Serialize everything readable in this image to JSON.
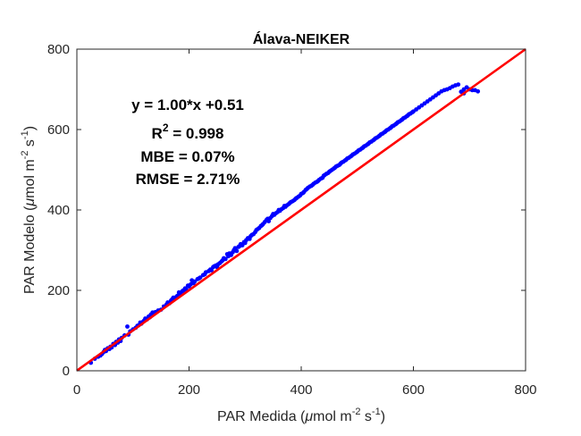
{
  "colors": {
    "points": "#0000ff",
    "fit_line": "#ff0000",
    "axes": "#262626",
    "background": "#ffffff"
  },
  "chart_data": {
    "type": "scatter",
    "title": "Álava-NEIKER",
    "xlabel": {
      "pre": "PAR Medida (",
      "mu": "μ",
      "mid": "mol m",
      "exp1": "-2",
      "mid2": " s",
      "exp2": "-1",
      "post": ")"
    },
    "ylabel": {
      "pre": "PAR Modelo (",
      "mu": "μ",
      "mid": "mol m",
      "exp1": "-2",
      "mid2": " s",
      "exp2": "-1",
      "post": ")"
    },
    "xlim": [
      0,
      800
    ],
    "ylim": [
      0,
      800
    ],
    "xticks": [
      "0",
      "200",
      "400",
      "600",
      "800"
    ],
    "yticks": [
      "0",
      "200",
      "400",
      "600",
      "800"
    ],
    "grid": false,
    "annotations": {
      "equation": "y = 1.00*x +0.51",
      "r2_base": "R",
      "r2_exp": "2",
      "r2_value": " = 0.998",
      "mbe": "MBE = 0.07%",
      "rmse": "RMSE = 2.71%"
    },
    "fit_line": {
      "slope": 1.0,
      "intercept": 0.51,
      "x": [
        0,
        800
      ]
    },
    "points": [
      [
        25,
        20
      ],
      [
        32,
        30
      ],
      [
        38,
        35
      ],
      [
        42,
        38
      ],
      [
        45,
        42
      ],
      [
        48,
        47
      ],
      [
        50,
        52
      ],
      [
        52,
        49
      ],
      [
        55,
        56
      ],
      [
        58,
        54
      ],
      [
        60,
        60
      ],
      [
        62,
        58
      ],
      [
        65,
        67
      ],
      [
        68,
        64
      ],
      [
        70,
        72
      ],
      [
        73,
        70
      ],
      [
        75,
        78
      ],
      [
        78,
        74
      ],
      [
        80,
        82
      ],
      [
        85,
        88
      ],
      [
        90,
        110
      ],
      [
        92,
        90
      ],
      [
        95,
        98
      ],
      [
        100,
        103
      ],
      [
        105,
        107
      ],
      [
        108,
        112
      ],
      [
        110,
        113
      ],
      [
        113,
        120
      ],
      [
        115,
        117
      ],
      [
        118,
        122
      ],
      [
        120,
        125
      ],
      [
        122,
        130
      ],
      [
        125,
        128
      ],
      [
        128,
        135
      ],
      [
        130,
        133
      ],
      [
        132,
        140
      ],
      [
        135,
        145
      ],
      [
        138,
        142
      ],
      [
        140,
        146
      ],
      [
        145,
        150
      ],
      [
        150,
        152
      ],
      [
        155,
        160
      ],
      [
        160,
        165
      ],
      [
        162,
        170
      ],
      [
        165,
        168
      ],
      [
        168,
        175
      ],
      [
        170,
        178
      ],
      [
        172,
        182
      ],
      [
        175,
        180
      ],
      [
        178,
        185
      ],
      [
        180,
        187
      ],
      [
        182,
        195
      ],
      [
        185,
        192
      ],
      [
        188,
        198
      ],
      [
        190,
        200
      ],
      [
        193,
        205
      ],
      [
        195,
        202
      ],
      [
        198,
        212
      ],
      [
        200,
        210
      ],
      [
        203,
        215
      ],
      [
        205,
        225
      ],
      [
        208,
        218
      ],
      [
        210,
        222
      ],
      [
        215,
        228
      ],
      [
        218,
        230
      ],
      [
        220,
        232
      ],
      [
        225,
        238
      ],
      [
        228,
        240
      ],
      [
        230,
        245
      ],
      [
        235,
        248
      ],
      [
        238,
        252
      ],
      [
        240,
        250
      ],
      [
        243,
        258
      ],
      [
        245,
        260
      ],
      [
        248,
        262
      ],
      [
        250,
        258
      ],
      [
        252,
        265
      ],
      [
        255,
        268
      ],
      [
        258,
        272
      ],
      [
        260,
        275
      ],
      [
        262,
        280
      ],
      [
        265,
        278
      ],
      [
        268,
        290
      ],
      [
        270,
        285
      ],
      [
        272,
        292
      ],
      [
        275,
        288
      ],
      [
        278,
        295
      ],
      [
        280,
        300
      ],
      [
        282,
        305
      ],
      [
        285,
        298
      ],
      [
        288,
        308
      ],
      [
        290,
        310
      ],
      [
        292,
        315
      ],
      [
        295,
        312
      ],
      [
        298,
        320
      ],
      [
        300,
        318
      ],
      [
        302,
        325
      ],
      [
        305,
        330
      ],
      [
        308,
        328
      ],
      [
        310,
        335
      ],
      [
        312,
        338
      ],
      [
        315,
        340
      ],
      [
        318,
        345
      ],
      [
        320,
        350
      ],
      [
        322,
        352
      ],
      [
        325,
        355
      ],
      [
        328,
        360
      ],
      [
        330,
        362
      ],
      [
        332,
        365
      ],
      [
        335,
        370
      ],
      [
        338,
        375
      ],
      [
        340,
        378
      ],
      [
        342,
        372
      ],
      [
        345,
        380
      ],
      [
        348,
        385
      ],
      [
        350,
        390
      ],
      [
        352,
        388
      ],
      [
        355,
        392
      ],
      [
        358,
        395
      ],
      [
        360,
        400
      ],
      [
        362,
        398
      ],
      [
        365,
        402
      ],
      [
        368,
        405
      ],
      [
        370,
        410
      ],
      [
        372,
        408
      ],
      [
        375,
        412
      ],
      [
        378,
        415
      ],
      [
        380,
        418
      ],
      [
        382,
        420
      ],
      [
        385,
        422
      ],
      [
        388,
        425
      ],
      [
        390,
        428
      ],
      [
        392,
        430
      ],
      [
        395,
        433
      ],
      [
        398,
        436
      ],
      [
        400,
        440
      ],
      [
        403,
        442
      ],
      [
        405,
        445
      ],
      [
        408,
        450
      ],
      [
        410,
        452
      ],
      [
        412,
        455
      ],
      [
        415,
        458
      ],
      [
        418,
        460
      ],
      [
        420,
        462
      ],
      [
        422,
        465
      ],
      [
        425,
        468
      ],
      [
        428,
        470
      ],
      [
        430,
        472
      ],
      [
        432,
        475
      ],
      [
        435,
        478
      ],
      [
        438,
        480
      ],
      [
        440,
        485
      ],
      [
        442,
        487
      ],
      [
        445,
        490
      ],
      [
        448,
        492
      ],
      [
        450,
        495
      ],
      [
        452,
        497
      ],
      [
        455,
        500
      ],
      [
        458,
        503
      ],
      [
        460,
        505
      ],
      [
        462,
        508
      ],
      [
        465,
        510
      ],
      [
        468,
        512
      ],
      [
        470,
        515
      ],
      [
        472,
        518
      ],
      [
        475,
        520
      ],
      [
        478,
        523
      ],
      [
        480,
        525
      ],
      [
        482,
        528
      ],
      [
        485,
        530
      ],
      [
        488,
        533
      ],
      [
        490,
        535
      ],
      [
        492,
        538
      ],
      [
        495,
        540
      ],
      [
        498,
        543
      ],
      [
        500,
        545
      ],
      [
        502,
        548
      ],
      [
        505,
        550
      ],
      [
        508,
        553
      ],
      [
        510,
        555
      ],
      [
        512,
        558
      ],
      [
        515,
        560
      ],
      [
        518,
        563
      ],
      [
        520,
        565
      ],
      [
        522,
        568
      ],
      [
        525,
        570
      ],
      [
        528,
        573
      ],
      [
        530,
        575
      ],
      [
        532,
        578
      ],
      [
        535,
        580
      ],
      [
        538,
        583
      ],
      [
        540,
        585
      ],
      [
        542,
        588
      ],
      [
        545,
        590
      ],
      [
        548,
        593
      ],
      [
        550,
        595
      ],
      [
        552,
        598
      ],
      [
        555,
        600
      ],
      [
        558,
        603
      ],
      [
        560,
        605
      ],
      [
        562,
        608
      ],
      [
        565,
        610
      ],
      [
        568,
        613
      ],
      [
        570,
        615
      ],
      [
        572,
        618
      ],
      [
        575,
        620
      ],
      [
        578,
        623
      ],
      [
        580,
        625
      ],
      [
        582,
        628
      ],
      [
        585,
        630
      ],
      [
        588,
        633
      ],
      [
        590,
        635
      ],
      [
        592,
        638
      ],
      [
        595,
        640
      ],
      [
        598,
        643
      ],
      [
        600,
        645
      ],
      [
        605,
        650
      ],
      [
        610,
        655
      ],
      [
        615,
        660
      ],
      [
        620,
        665
      ],
      [
        625,
        670
      ],
      [
        630,
        675
      ],
      [
        635,
        680
      ],
      [
        640,
        685
      ],
      [
        645,
        690
      ],
      [
        650,
        695
      ],
      [
        655,
        698
      ],
      [
        660,
        700
      ],
      [
        665,
        703
      ],
      [
        670,
        707
      ],
      [
        675,
        710
      ],
      [
        680,
        712
      ],
      [
        690,
        700
      ],
      [
        695,
        705
      ],
      [
        700,
        700
      ],
      [
        705,
        698
      ],
      [
        710,
        698
      ],
      [
        715,
        695
      ],
      [
        685,
        694
      ],
      [
        690,
        690
      ]
    ]
  }
}
